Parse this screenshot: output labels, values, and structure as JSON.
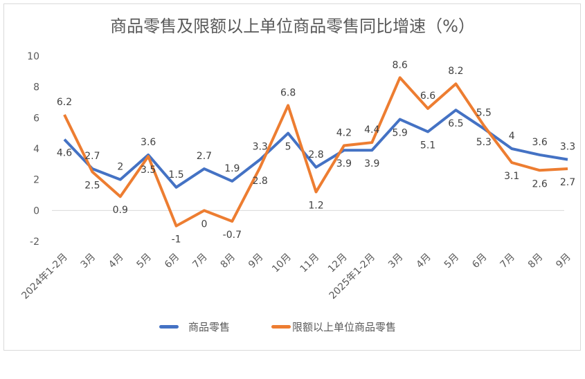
{
  "chart_data": {
    "type": "line",
    "title": "商品零售及限额以上单位商品零售同比增速（%）",
    "categories": [
      "2024年1-2月",
      "3月",
      "4月",
      "5月",
      "6月",
      "7月",
      "8月",
      "9月",
      "10月",
      "11月",
      "12月",
      "2025年1-2月",
      "3月",
      "4月",
      "5月",
      "6月",
      "7月",
      "8月",
      "9月"
    ],
    "series": [
      {
        "name": "商品零售",
        "color": "#4472c4",
        "values": [
          4.6,
          2.7,
          2,
          3.6,
          1.5,
          2.7,
          1.9,
          3.3,
          5,
          2.8,
          3.9,
          3.9,
          5.9,
          5.1,
          6.5,
          5.3,
          4,
          3.6,
          3.3
        ]
      },
      {
        "name": "限额以上单位商品零售",
        "color": "#ed7d31",
        "values": [
          6.2,
          2.5,
          0.9,
          3.5,
          -1,
          0,
          -0.7,
          2.8,
          6.8,
          1.2,
          4.2,
          4.4,
          8.6,
          6.6,
          8.2,
          5.5,
          3.1,
          2.6,
          2.7
        ]
      }
    ],
    "ylim": [
      -2,
      10
    ],
    "yticks": [
      -2,
      0,
      2,
      4,
      6,
      8,
      10
    ],
    "grid": false,
    "legend": "bottom"
  }
}
